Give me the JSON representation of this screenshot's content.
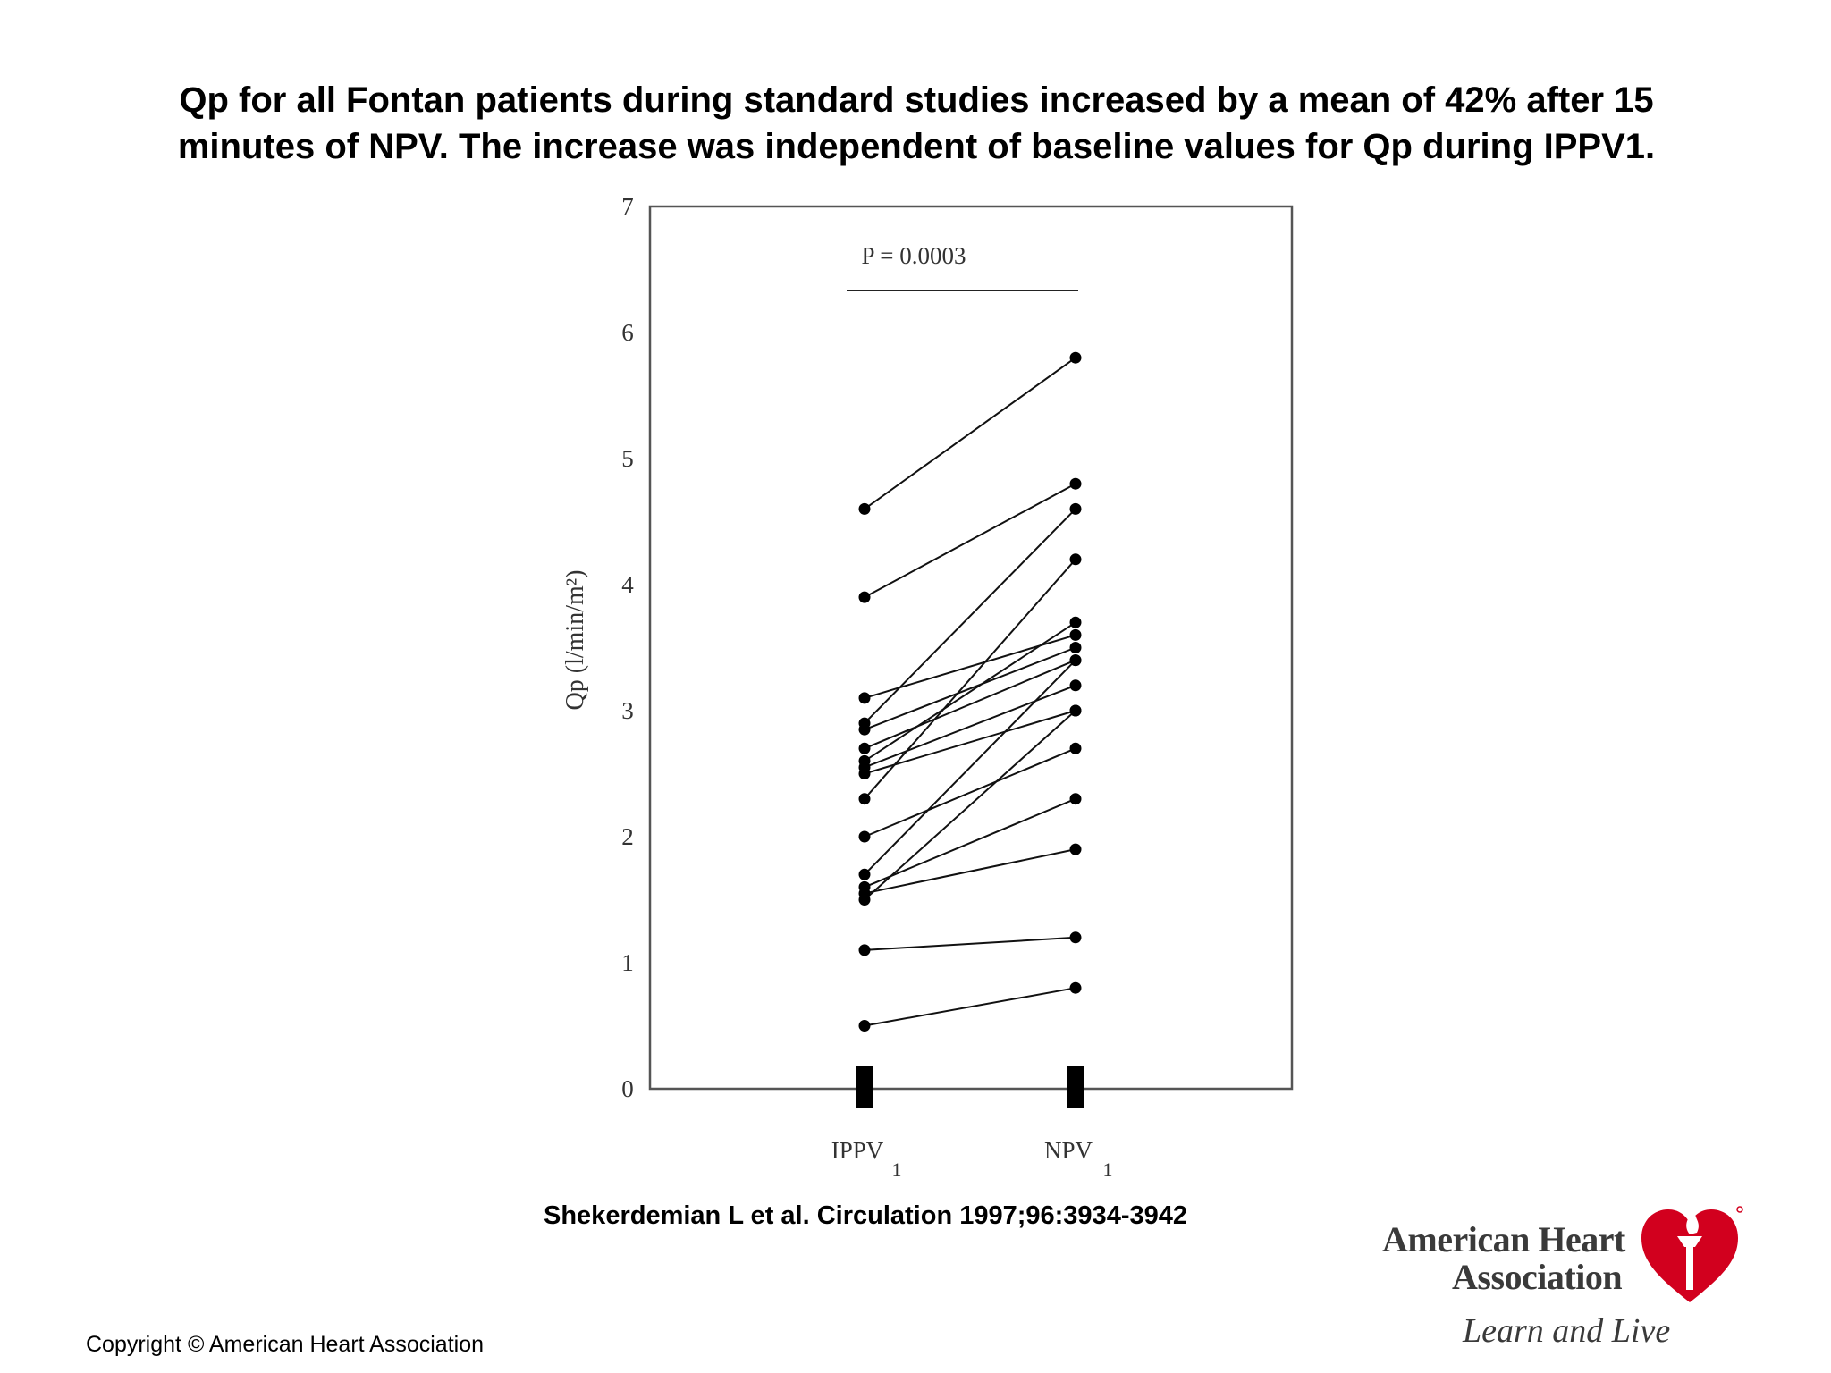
{
  "title": {
    "line1": "Qp for all Fontan patients during standard studies increased by a mean of 42% after 15",
    "line2": "minutes of NPV. The increase was independent of baseline values for Qp during IPPV1."
  },
  "chart_data": {
    "type": "line",
    "ylabel": "Qp (l/min/m²)",
    "ylim": [
      0,
      7
    ],
    "yticks": [
      "0",
      "1",
      "2",
      "3",
      "4",
      "5",
      "6",
      "7"
    ],
    "categories": [
      {
        "main": "IPPV",
        "sub": "1"
      },
      {
        "main": "NPV",
        "sub": "1"
      }
    ],
    "annotation": "P = 0.0003",
    "grid": false,
    "legend": "none",
    "pairs": [
      [
        4.6,
        5.8
      ],
      [
        3.9,
        4.8
      ],
      [
        3.1,
        3.6
      ],
      [
        2.9,
        4.6
      ],
      [
        2.85,
        3.5
      ],
      [
        2.7,
        3.4
      ],
      [
        2.6,
        3.7
      ],
      [
        2.55,
        3.2
      ],
      [
        2.5,
        3.0
      ],
      [
        2.3,
        4.2
      ],
      [
        2.0,
        2.7
      ],
      [
        1.7,
        3.4
      ],
      [
        1.6,
        2.3
      ],
      [
        1.55,
        1.9
      ],
      [
        1.5,
        3.0
      ],
      [
        1.1,
        1.2
      ],
      [
        0.5,
        0.8
      ]
    ]
  },
  "citation": "Shekerdemian L et al. Circulation 1997;96:3934-3942",
  "copyright": "Copyright © American Heart Association",
  "logo": {
    "line1": "American Heart",
    "line2": "Association",
    "tagline": "Learn and Live",
    "color": "#d2001e"
  }
}
